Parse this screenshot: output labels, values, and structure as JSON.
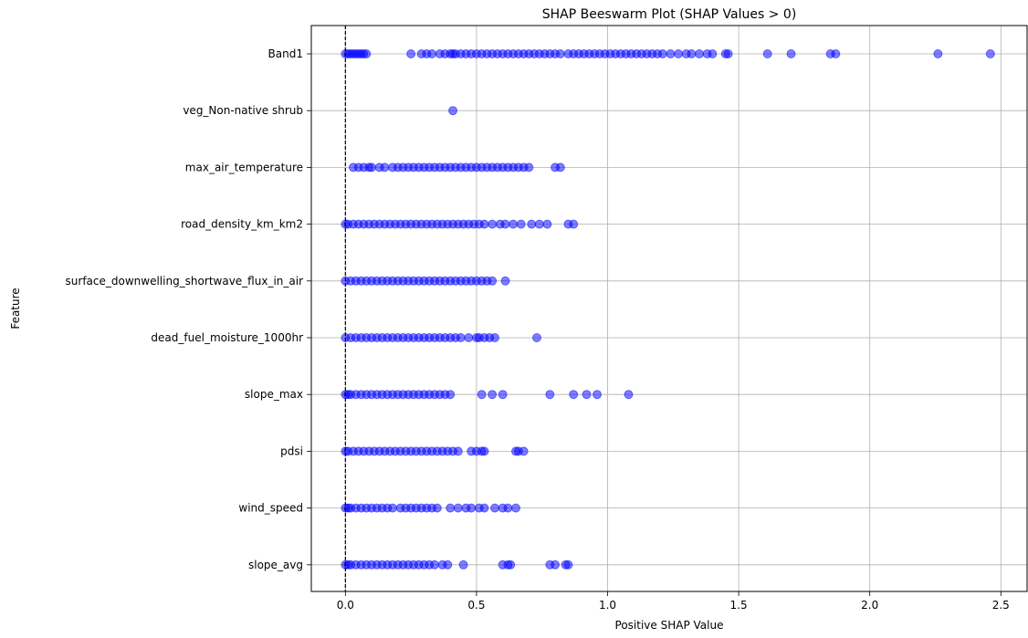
{
  "chart_data": {
    "type": "scatter",
    "title": "SHAP Beeswarm Plot (SHAP Values > 0)",
    "xlabel": "Positive SHAP Value",
    "ylabel": "Feature",
    "xlim": [
      -0.13,
      2.6
    ],
    "xticks": [
      0.0,
      0.5,
      1.0,
      1.5,
      2.0,
      2.5
    ],
    "xtick_labels": [
      "0.0",
      "0.5",
      "1.0",
      "1.5",
      "2.0",
      "2.5"
    ],
    "grid": true,
    "reference_line": {
      "x": 0.0,
      "style": "dashed",
      "color": "#000000"
    },
    "point_color": "#0000ff",
    "point_alpha": 0.5,
    "features": [
      {
        "name": "Band1",
        "values": [
          0.0,
          0.01,
          0.02,
          0.03,
          0.04,
          0.05,
          0.06,
          0.07,
          0.08,
          0.25,
          0.29,
          0.31,
          0.33,
          0.36,
          0.38,
          0.4,
          0.41,
          0.42,
          0.44,
          0.46,
          0.48,
          0.5,
          0.52,
          0.54,
          0.56,
          0.58,
          0.6,
          0.62,
          0.64,
          0.66,
          0.68,
          0.7,
          0.72,
          0.74,
          0.76,
          0.78,
          0.8,
          0.82,
          0.85,
          0.87,
          0.89,
          0.91,
          0.93,
          0.95,
          0.97,
          0.99,
          1.01,
          1.03,
          1.05,
          1.07,
          1.09,
          1.11,
          1.13,
          1.15,
          1.17,
          1.19,
          1.21,
          1.24,
          1.27,
          1.3,
          1.32,
          1.35,
          1.38,
          1.4,
          1.45,
          1.46,
          1.61,
          1.7,
          1.85,
          1.87,
          2.26,
          2.46
        ]
      },
      {
        "name": "veg_Non-native shrub ",
        "values": [
          0.41
        ]
      },
      {
        "name": "max_air_temperature",
        "values": [
          0.03,
          0.05,
          0.07,
          0.09,
          0.1,
          0.13,
          0.15,
          0.18,
          0.2,
          0.22,
          0.24,
          0.26,
          0.28,
          0.3,
          0.32,
          0.34,
          0.36,
          0.38,
          0.4,
          0.42,
          0.44,
          0.46,
          0.48,
          0.5,
          0.52,
          0.54,
          0.56,
          0.58,
          0.6,
          0.62,
          0.64,
          0.66,
          0.68,
          0.7,
          0.8,
          0.82
        ]
      },
      {
        "name": "road_density_km_km2",
        "values": [
          0.0,
          0.01,
          0.03,
          0.05,
          0.07,
          0.09,
          0.11,
          0.13,
          0.15,
          0.17,
          0.19,
          0.21,
          0.23,
          0.25,
          0.27,
          0.29,
          0.31,
          0.33,
          0.35,
          0.37,
          0.39,
          0.41,
          0.43,
          0.45,
          0.47,
          0.49,
          0.51,
          0.53,
          0.56,
          0.59,
          0.61,
          0.64,
          0.67,
          0.71,
          0.74,
          0.77,
          0.85,
          0.87
        ]
      },
      {
        "name": "surface_downwelling_shortwave_flux_in_air",
        "values": [
          0.0,
          0.02,
          0.04,
          0.06,
          0.08,
          0.1,
          0.12,
          0.14,
          0.16,
          0.18,
          0.2,
          0.22,
          0.24,
          0.26,
          0.28,
          0.3,
          0.32,
          0.34,
          0.36,
          0.38,
          0.4,
          0.42,
          0.44,
          0.46,
          0.48,
          0.5,
          0.52,
          0.54,
          0.56,
          0.61
        ]
      },
      {
        "name": "dead_fuel_moisture_1000hr",
        "values": [
          0.0,
          0.02,
          0.04,
          0.06,
          0.08,
          0.1,
          0.12,
          0.14,
          0.16,
          0.18,
          0.2,
          0.22,
          0.24,
          0.26,
          0.28,
          0.3,
          0.32,
          0.34,
          0.36,
          0.38,
          0.4,
          0.42,
          0.44,
          0.47,
          0.5,
          0.51,
          0.53,
          0.55,
          0.57,
          0.73
        ]
      },
      {
        "name": "slope_max",
        "values": [
          0.0,
          0.01,
          0.02,
          0.04,
          0.06,
          0.08,
          0.1,
          0.12,
          0.14,
          0.16,
          0.18,
          0.2,
          0.22,
          0.24,
          0.26,
          0.28,
          0.3,
          0.32,
          0.34,
          0.36,
          0.38,
          0.4,
          0.52,
          0.56,
          0.6,
          0.78,
          0.87,
          0.92,
          0.96,
          1.08
        ]
      },
      {
        "name": "pdsi",
        "values": [
          0.0,
          0.01,
          0.03,
          0.05,
          0.07,
          0.09,
          0.11,
          0.13,
          0.15,
          0.17,
          0.19,
          0.21,
          0.23,
          0.25,
          0.27,
          0.29,
          0.31,
          0.33,
          0.35,
          0.37,
          0.39,
          0.41,
          0.43,
          0.48,
          0.5,
          0.52,
          0.53,
          0.65,
          0.66,
          0.68
        ]
      },
      {
        "name": "wind_speed",
        "values": [
          0.0,
          0.01,
          0.02,
          0.04,
          0.06,
          0.08,
          0.1,
          0.12,
          0.14,
          0.16,
          0.18,
          0.21,
          0.23,
          0.25,
          0.27,
          0.29,
          0.31,
          0.33,
          0.35,
          0.4,
          0.43,
          0.46,
          0.48,
          0.51,
          0.53,
          0.57,
          0.6,
          0.62,
          0.65
        ]
      },
      {
        "name": "slope_avg",
        "values": [
          0.0,
          0.01,
          0.02,
          0.04,
          0.06,
          0.08,
          0.1,
          0.12,
          0.14,
          0.16,
          0.18,
          0.2,
          0.22,
          0.24,
          0.26,
          0.28,
          0.3,
          0.32,
          0.34,
          0.37,
          0.39,
          0.45,
          0.6,
          0.62,
          0.63,
          0.78,
          0.8,
          0.84,
          0.85
        ]
      }
    ]
  }
}
